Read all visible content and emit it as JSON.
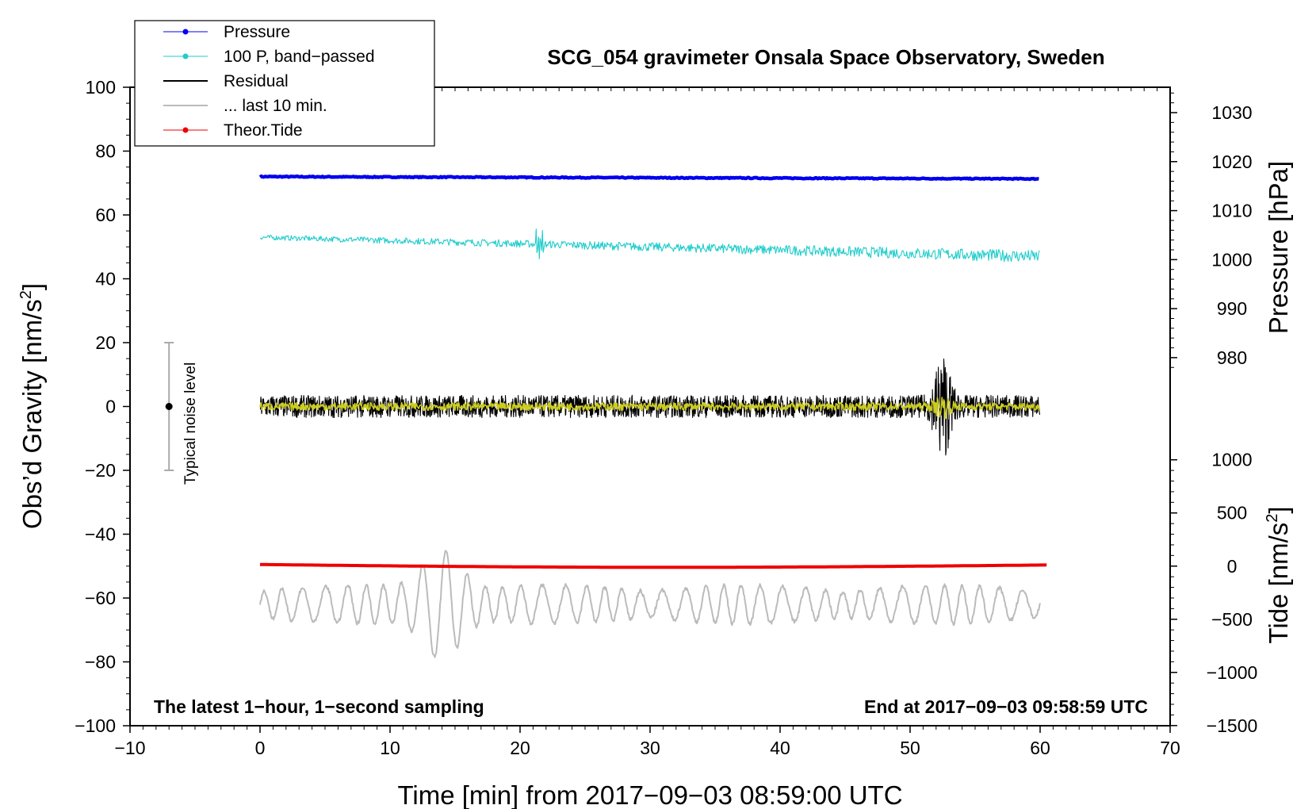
{
  "chart_data": {
    "type": "line",
    "title": "SCG_054 gravimeter Onsala Space Observatory, Sweden",
    "xlabel": "Time [min] from 2017−09−03 08:59:00 UTC",
    "ylabel_left_main": "Obs’d Gravity [nm/s",
    "ylabel_left_sup": "2",
    "ylabel_left_end": "]",
    "ylabel_right_pressure": "Pressure [hPa]",
    "ylabel_right_tide_main": "Tide [nm/s",
    "ylabel_right_tide_sup": "2",
    "ylabel_right_tide_end": "]",
    "xlim": [
      -10,
      70
    ],
    "ylim_left": [
      -100,
      100
    ],
    "x_ticks": [
      -10,
      0,
      10,
      20,
      30,
      40,
      50,
      60,
      70
    ],
    "x_tick_labels": [
      "−10",
      "0",
      "10",
      "20",
      "30",
      "40",
      "50",
      "60",
      "70"
    ],
    "y_left_ticks": [
      100,
      80,
      60,
      40,
      20,
      0,
      -20,
      -40,
      -60,
      -80,
      -100
    ],
    "y_left_tick_labels": [
      "100",
      "80",
      "60",
      "40",
      "20",
      "0",
      "−20",
      "−40",
      "−60",
      "−80",
      "−100"
    ],
    "pressure_axis": {
      "ticks": [
        1030,
        1020,
        1010,
        1000,
        990,
        980
      ],
      "tick_labels": [
        "1030",
        "1020",
        "1010",
        "1000",
        "990",
        "980"
      ],
      "gravity_at_1000": 46,
      "gravity_per_hpa": 1.535
    },
    "tide_axis": {
      "ticks": [
        1000,
        500,
        0,
        -500,
        -1000,
        -1500
      ],
      "tick_labels": [
        "1000",
        "500",
        "0",
        "−500",
        "−1000",
        "−1500"
      ],
      "gravity_at_0": -50,
      "gravity_per_unit": 0.0333
    },
    "series": [
      {
        "name": "Pressure",
        "color": "#0000ee",
        "x_start": 0,
        "x_end": 60,
        "start": 72,
        "end": 71.3,
        "noise": 0.3
      },
      {
        "name": "100 P, band−passed",
        "color": "#22cccc",
        "x_start": 0,
        "x_end": 60,
        "start": 53,
        "end": 47,
        "noise": 1.5
      },
      {
        "name": "Residual",
        "color": "#000000",
        "x_start": 0,
        "x_end": 60,
        "center": 0,
        "noise": 3.5,
        "burst_at": 52.5,
        "burst_amp": 14
      },
      {
        "name": "... last 10 min.",
        "color": "#bbbbbb",
        "x_start": 0,
        "x_end": 60,
        "center": -62,
        "amp": 4,
        "burst_at": 14,
        "burst_amp": 13
      },
      {
        "name": "Theor.Tide",
        "color": "#ee0000",
        "x_start": 0,
        "x_end": 60.5,
        "start": -49.5,
        "mid": -50.3,
        "end": -49.8
      }
    ],
    "filtered_residual": {
      "color": "#cccc22",
      "noise": 1.2
    },
    "noise_indicator": {
      "label": "Typical noise level",
      "x": -7,
      "center": 0,
      "range": [
        -20,
        20
      ]
    },
    "annotations": {
      "bottom_left": "The latest 1−hour, 1−second sampling",
      "bottom_right": "End at 2017−09−03 09:58:59 UTC"
    },
    "legend_position": "top-left"
  }
}
